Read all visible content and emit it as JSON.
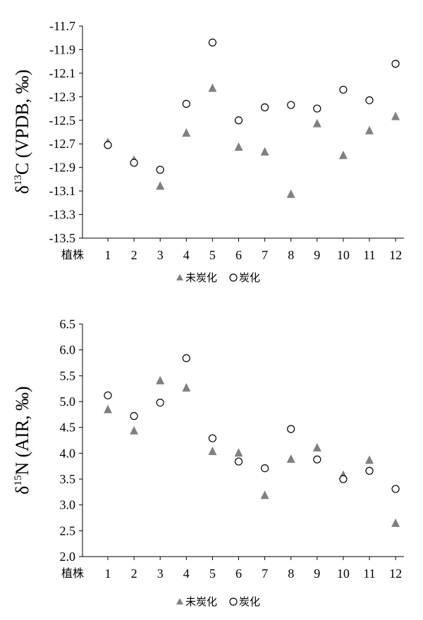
{
  "chart_data": [
    {
      "type": "scatter",
      "categories": [
        "1",
        "2",
        "3",
        "4",
        "5",
        "6",
        "7",
        "8",
        "9",
        "10",
        "11",
        "12"
      ],
      "category_axis_label": "植株",
      "ylabel": {
        "prefix": "δ",
        "sup": "13",
        "rest": "C (VPDB, ‰)"
      },
      "ylim": [
        -13.5,
        -11.7
      ],
      "yticks": [
        "-11.7",
        "-11.9",
        "-12.1",
        "-12.3",
        "-12.5",
        "-12.7",
        "-12.9",
        "-13.1",
        "-13.3",
        "-13.5"
      ],
      "ytick_values": [
        -11.7,
        -11.9,
        -12.1,
        -12.3,
        -12.5,
        -12.7,
        -12.9,
        -13.1,
        -13.3,
        -13.5
      ],
      "grid": false,
      "legend_placement": "bottom-center",
      "series": [
        {
          "name": "未炭化",
          "marker": "triangle",
          "color": "#808080",
          "values": [
            -12.69,
            -12.84,
            -13.06,
            -12.61,
            -12.23,
            -12.73,
            -12.77,
            -13.13,
            -12.53,
            -12.8,
            -12.59,
            -12.47
          ]
        },
        {
          "name": "炭化",
          "marker": "circle",
          "color": "#ffffff",
          "values": [
            -12.71,
            -12.86,
            -12.92,
            -12.36,
            -11.84,
            -12.5,
            -12.39,
            -12.37,
            -12.4,
            -12.24,
            -12.33,
            -12.02
          ]
        }
      ]
    },
    {
      "type": "scatter",
      "categories": [
        "1",
        "2",
        "3",
        "4",
        "5",
        "6",
        "7",
        "8",
        "9",
        "10",
        "11",
        "12"
      ],
      "category_axis_label": "植株",
      "ylabel": {
        "prefix": "δ",
        "sup": "15",
        "rest": "N (AIR, ‰)"
      },
      "ylim": [
        2.0,
        6.5
      ],
      "yticks": [
        "6.5",
        "6.0",
        "5.5",
        "5.0",
        "4.5",
        "4.0",
        "3.5",
        "3.0",
        "2.5",
        "2.0"
      ],
      "ytick_values": [
        6.5,
        6.0,
        5.5,
        5.0,
        4.5,
        4.0,
        3.5,
        3.0,
        2.5,
        2.0
      ],
      "grid": false,
      "legend_placement": "bottom-center",
      "series": [
        {
          "name": "未炭化",
          "marker": "triangle",
          "color": "#808080",
          "values": [
            4.84,
            4.43,
            5.4,
            5.26,
            4.03,
            4.0,
            3.18,
            3.88,
            4.1,
            3.57,
            3.86,
            2.64
          ]
        },
        {
          "name": "炭化",
          "marker": "circle",
          "color": "#ffffff",
          "values": [
            5.12,
            4.72,
            4.98,
            5.84,
            4.29,
            3.84,
            3.71,
            4.47,
            3.88,
            3.5,
            3.66,
            3.31
          ]
        }
      ]
    }
  ]
}
